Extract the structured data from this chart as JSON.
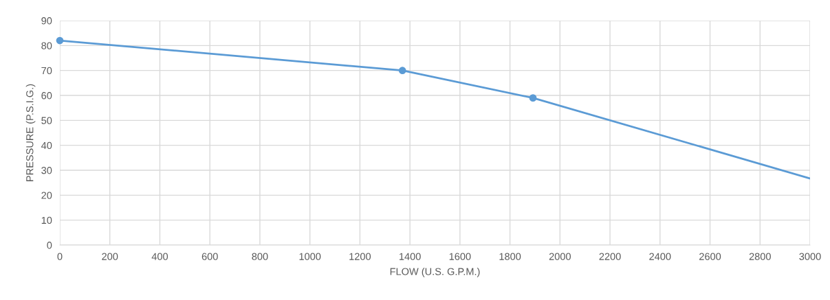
{
  "chart_data": {
    "type": "line",
    "xlabel": "FLOW (U.S. G.P.M.)",
    "ylabel": "PRESSURE (P.S.I.G.)",
    "xlim": [
      0,
      3000
    ],
    "xticks": [
      0,
      200,
      400,
      600,
      800,
      1000,
      1200,
      1400,
      1600,
      1800,
      2000,
      2200,
      2400,
      2600,
      2800,
      3000
    ],
    "ylim": [
      0,
      90
    ],
    "yticks": [
      0,
      10,
      20,
      30,
      40,
      50,
      60,
      70,
      80,
      90
    ],
    "grid": true,
    "legend": false,
    "series": [
      {
        "color": "#5b9bd5",
        "marker": "none",
        "x": [
          0,
          1370,
          1892,
          3000
        ],
        "values": [
          82,
          70,
          59,
          26.7
        ]
      },
      {
        "type": "scatter",
        "color": "#5b9bd5",
        "marker": "circle",
        "x": [
          0,
          1370,
          1892
        ],
        "values": [
          82,
          70,
          59
        ]
      }
    ]
  }
}
